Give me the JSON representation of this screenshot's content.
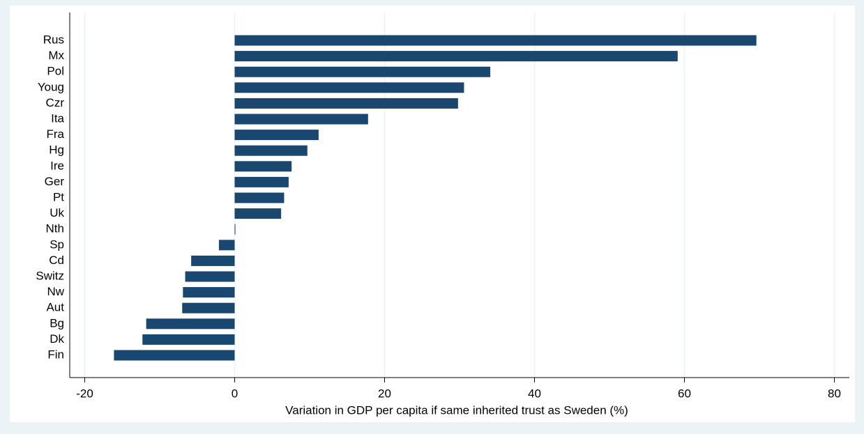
{
  "chart_data": {
    "type": "hbar",
    "x_label": "Variation in GDP per capita if same inherited trust as Sweden (%)",
    "categories": [
      "Rus",
      "Mx",
      "Pol",
      "Youg",
      "Czr",
      "Ita",
      "Fra",
      "Hg",
      "Ire",
      "Ger",
      "Pt",
      "Uk",
      "Nth",
      "Sp",
      "Cd",
      "Switz",
      "Nw",
      "Aut",
      "Bg",
      "Dk",
      "Fin"
    ],
    "values": [
      69.6,
      59.1,
      34.1,
      30.6,
      29.8,
      17.8,
      11.2,
      9.7,
      7.6,
      7.2,
      6.6,
      6.2,
      0.1,
      -2.1,
      -5.8,
      -6.6,
      -6.9,
      -7.0,
      -11.8,
      -12.3,
      -16.1
    ],
    "color": "#1a476f",
    "xlim": [
      -22,
      82
    ],
    "xticks": [
      -20,
      0,
      20,
      40,
      60,
      80
    ],
    "grid": true
  }
}
